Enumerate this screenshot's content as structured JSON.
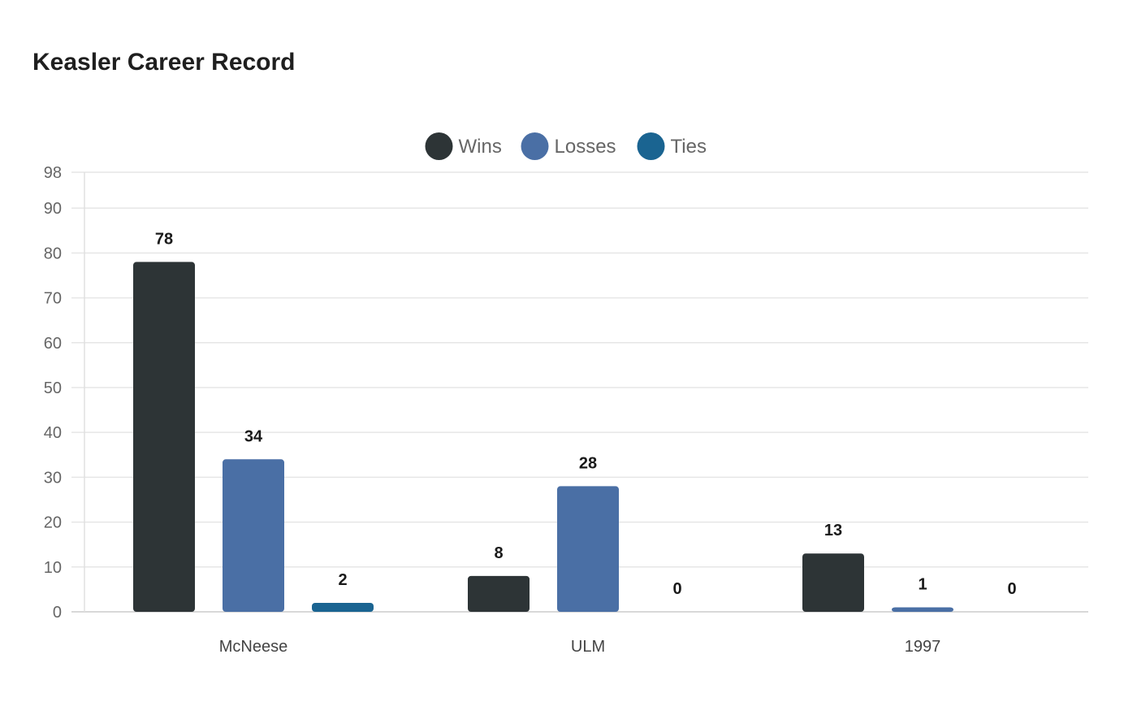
{
  "chart_data": {
    "type": "bar",
    "title": "Keasler Career Record",
    "xlabel": "",
    "ylabel": "",
    "categories": [
      "McNeese",
      "ULM",
      "1997"
    ],
    "series": [
      {
        "name": "Wins",
        "values": [
          78,
          8,
          13
        ],
        "color": "#2d3436"
      },
      {
        "name": "Losses",
        "values": [
          34,
          28,
          1
        ],
        "color": "#4a6fa5"
      },
      {
        "name": "Ties",
        "values": [
          2,
          0,
          0
        ],
        "color": "#1a6491"
      }
    ],
    "ylim": [
      0,
      98
    ],
    "yticks": [
      0,
      10,
      20,
      30,
      40,
      50,
      60,
      70,
      80,
      90,
      98
    ],
    "grid": true,
    "legend_position": "top-center",
    "data_labels": true
  }
}
